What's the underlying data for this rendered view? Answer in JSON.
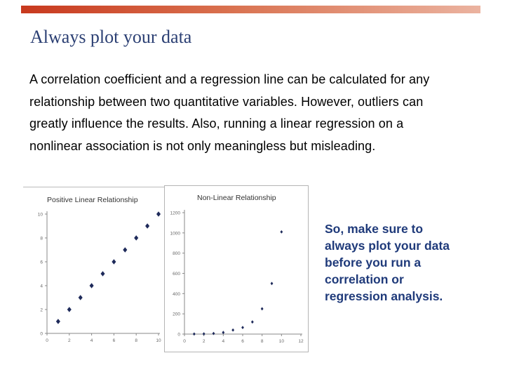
{
  "slide": {
    "title": "Always plot your data",
    "body_lines": [
      "A correlation coefficient and a regression line can be calculated for any",
      "relationship between two quantitative variables. However, outliers can",
      "greatly influence the results. Also, running a linear regression on a",
      "nonlinear association is not only meaningless but misleading."
    ],
    "note_lines": [
      "So, make sure to",
      "always plot your data",
      "before you run a",
      "correlation or",
      "regression analysis."
    ],
    "colors": {
      "accent_bar": "#c8391e",
      "title": "#2b3f73",
      "note": "#1f3a7a",
      "marker": "#1e2a5a"
    }
  },
  "chart_data": [
    {
      "type": "scatter",
      "title": "Positive Linear Relationship",
      "xlim": [
        0,
        10
      ],
      "ylim": [
        0,
        10
      ],
      "xticks": [
        0,
        2,
        4,
        6,
        8,
        10
      ],
      "yticks": [
        0,
        2,
        4,
        6,
        8,
        10
      ],
      "x": [
        1,
        2,
        3,
        4,
        5,
        6,
        7,
        8,
        9,
        10
      ],
      "y": [
        1,
        2,
        3,
        4,
        5,
        6,
        7,
        8,
        9,
        10
      ],
      "grid": false
    },
    {
      "type": "scatter",
      "title": "Non-Linear Relationship",
      "xlim": [
        0,
        12
      ],
      "ylim": [
        0,
        1200
      ],
      "xticks": [
        0,
        2,
        4,
        6,
        8,
        10,
        12
      ],
      "yticks": [
        0,
        200,
        400,
        600,
        800,
        1000,
        1200
      ],
      "x": [
        1,
        2,
        3,
        4,
        5,
        6,
        7,
        8,
        9,
        10
      ],
      "y": [
        1,
        2,
        6,
        16,
        40,
        65,
        120,
        250,
        500,
        1010
      ],
      "grid": false
    }
  ]
}
